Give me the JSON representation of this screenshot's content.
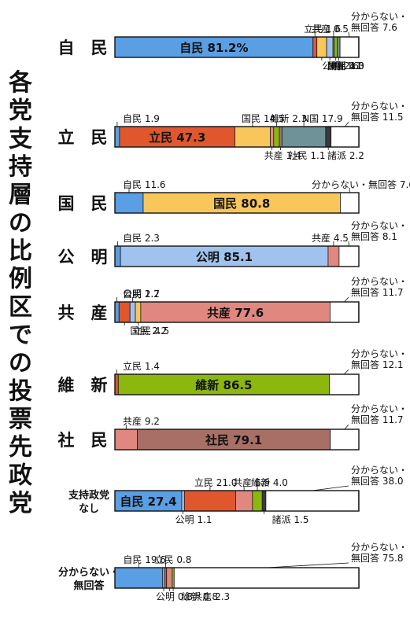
{
  "chart_data": {
    "type": "bar",
    "orientation": "horizontal-stacked-100",
    "title": "各党支持層の比例区での投票先政党",
    "xlim": [
      0,
      100
    ],
    "colors": {
      "自民": "#5a9ee3",
      "立民": "#e0572e",
      "国民": "#f8c65a",
      "公明": "#9fc3ee",
      "共産": "#e08880",
      "維新": "#8cb80d",
      "社民": "#a86f66",
      "N国": "#6e9297",
      "諸派": "#3a3a3a",
      "分からない・無回答": "#ffffff",
      "other": "#bdbdbd"
    },
    "rows": [
      {
        "name": "自　民",
        "segments": [
          {
            "party": "自民",
            "value": 81.2
          },
          {
            "party": "立民",
            "value": 1.6
          },
          {
            "party": "国民",
            "value": 4.0
          },
          {
            "party": "公明",
            "value": 2.6
          },
          {
            "party": "共産",
            "value": 0.5
          },
          {
            "party": "維新",
            "value": 1.3
          },
          {
            "party": "N国",
            "value": 1.1
          },
          {
            "party": "分からない・無回答",
            "value": 7.6
          }
        ],
        "labels": [
          {
            "party": "自民",
            "text": "自民 81.2%",
            "pos": "inside"
          },
          {
            "party": "共産",
            "text": "共産 0.5",
            "pos": "above"
          },
          {
            "party": "立民",
            "text": "立民 1.6",
            "pos": "above"
          },
          {
            "party": "分からない・無回答",
            "text": "分からない・",
            "text2": "無回答 7.6",
            "pos": "above"
          },
          {
            "party": "公明",
            "text": "公明 2.6",
            "pos": "below"
          },
          {
            "party": "国民",
            "text": "国民 4.0",
            "pos": "below"
          },
          {
            "party": "N国",
            "text": "N国 1.1",
            "pos": "below"
          },
          {
            "party": "維新",
            "text": "維新 1.3",
            "pos": "below"
          }
        ]
      },
      {
        "name": "立　民",
        "segments": [
          {
            "party": "自民",
            "value": 1.9
          },
          {
            "party": "立民",
            "value": 47.3
          },
          {
            "party": "国民",
            "value": 14.5
          },
          {
            "party": "共産",
            "value": 1.4
          },
          {
            "party": "維新",
            "value": 2.3
          },
          {
            "party": "社民",
            "value": 1.1
          },
          {
            "party": "N国",
            "value": 17.9
          },
          {
            "party": "諸派",
            "value": 2.2
          },
          {
            "party": "分からない・無回答",
            "value": 11.5
          }
        ],
        "labels": [
          {
            "party": "立民",
            "text": "立民 47.3",
            "pos": "inside"
          },
          {
            "party": "自民",
            "text": "自民 1.9",
            "pos": "above"
          },
          {
            "party": "国民",
            "text": "国民 14.5",
            "pos": "above"
          },
          {
            "party": "維新",
            "text": "維新 2.3",
            "pos": "above"
          },
          {
            "party": "N国",
            "text": "N国 17.9",
            "pos": "above"
          },
          {
            "party": "分からない・無回答",
            "text": "分からない・",
            "text2": "無回答 11.5",
            "pos": "above"
          },
          {
            "party": "共産",
            "text": "共産 1.4",
            "pos": "below"
          },
          {
            "party": "社民",
            "text": "社民 1.1",
            "pos": "below"
          },
          {
            "party": "諸派",
            "text": "諸派 2.2",
            "pos": "below"
          }
        ]
      },
      {
        "name": "国　民",
        "segments": [
          {
            "party": "自民",
            "value": 11.6
          },
          {
            "party": "国民",
            "value": 80.8
          },
          {
            "party": "分からない・無回答",
            "value": 7.6
          }
        ],
        "labels": [
          {
            "party": "国民",
            "text": "国民 80.8",
            "pos": "inside"
          },
          {
            "party": "自民",
            "text": "自民 11.6",
            "pos": "above"
          },
          {
            "party": "分からない・無回答",
            "text": "分からない・無回答 7.6",
            "pos": "above"
          }
        ]
      },
      {
        "name": "公　明",
        "segments": [
          {
            "party": "自民",
            "value": 2.3
          },
          {
            "party": "公明",
            "value": 85.1
          },
          {
            "party": "共産",
            "value": 4.5
          },
          {
            "party": "分からない・無回答",
            "value": 8.1
          }
        ],
        "labels": [
          {
            "party": "公明",
            "text": "公明 85.1",
            "pos": "inside"
          },
          {
            "party": "自民",
            "text": "自民 2.3",
            "pos": "above"
          },
          {
            "party": "共産",
            "text": "共産 4.5",
            "pos": "above"
          },
          {
            "party": "分からない・無回答",
            "text": "分からない・",
            "text2": "無回答 8.1",
            "pos": "above"
          }
        ]
      },
      {
        "name": "共　産",
        "segments": [
          {
            "party": "自民",
            "value": 1.7
          },
          {
            "party": "立民",
            "value": 4.5
          },
          {
            "party": "公明",
            "value": 2.2
          },
          {
            "party": "国民",
            "value": 2.2
          },
          {
            "party": "共産",
            "value": 77.6
          },
          {
            "party": "分からない・無回答",
            "value": 11.7
          }
        ],
        "labels": [
          {
            "party": "共産",
            "text": "共産 77.6",
            "pos": "inside"
          },
          {
            "party": "自民",
            "text": "自民 1.7",
            "pos": "above"
          },
          {
            "party": "公明",
            "text": "公明 2.2",
            "pos": "above"
          },
          {
            "party": "分からない・無回答",
            "text": "分からない・",
            "text2": "無回答 11.7",
            "pos": "above"
          },
          {
            "party": "国民",
            "text": "国民 2.2",
            "pos": "below"
          },
          {
            "party": "立民",
            "text": "立民 4.5",
            "pos": "below"
          }
        ]
      },
      {
        "name": "維　新",
        "segments": [
          {
            "party": "立民",
            "value": 1.4
          },
          {
            "party": "維新",
            "value": 86.5
          },
          {
            "party": "分からない・無回答",
            "value": 12.1
          }
        ],
        "labels": [
          {
            "party": "維新",
            "text": "維新 86.5",
            "pos": "inside"
          },
          {
            "party": "立民",
            "text": "立民 1.4",
            "pos": "above"
          },
          {
            "party": "分からない・無回答",
            "text": "分からない・",
            "text2": "無回答 12.1",
            "pos": "above"
          }
        ]
      },
      {
        "name": "社　民",
        "segments": [
          {
            "party": "共産",
            "value": 9.2
          },
          {
            "party": "社民",
            "value": 79.1
          },
          {
            "party": "分からない・無回答",
            "value": 11.7
          }
        ],
        "labels": [
          {
            "party": "社民",
            "text": "社民 79.1",
            "pos": "inside"
          },
          {
            "party": "共産",
            "text": "共産 9.2",
            "pos": "above"
          },
          {
            "party": "分からない・無回答",
            "text": "分からない・",
            "text2": "無回答 11.7",
            "pos": "above"
          }
        ]
      },
      {
        "name": "支持政党",
        "name2": "なし",
        "segments": [
          {
            "party": "自民",
            "value": 27.4
          },
          {
            "party": "公明",
            "value": 1.1
          },
          {
            "party": "立民",
            "value": 21.0
          },
          {
            "party": "共産",
            "value": 6.9
          },
          {
            "party": "維新",
            "value": 4.0
          },
          {
            "party": "諸派",
            "value": 1.5
          },
          {
            "party": "分からない・無回答",
            "value": 38.0
          }
        ],
        "labels": [
          {
            "party": "自民",
            "text": "自民 27.4",
            "pos": "inside"
          },
          {
            "party": "立民",
            "text": "立民 21.0",
            "pos": "above"
          },
          {
            "party": "共産",
            "text": "共産 6.9",
            "pos": "above"
          },
          {
            "party": "維新",
            "text": "維新 4.0",
            "pos": "above"
          },
          {
            "party": "分からない・無回答",
            "text": "分からない・",
            "text2": "無回答 38.0",
            "pos": "above"
          },
          {
            "party": "公明",
            "text": "公明 1.1",
            "pos": "below"
          },
          {
            "party": "諸派",
            "text": "諸派 1.5",
            "pos": "below"
          }
        ]
      },
      {
        "name": "分からない・",
        "name2": "無回答",
        "segments": [
          {
            "party": "自民",
            "value": 19.6
          },
          {
            "party": "公明",
            "value": 0.8
          },
          {
            "party": "立民",
            "value": 0.8
          },
          {
            "party": "共産",
            "value": 2.3
          },
          {
            "party": "維新",
            "value": 0.8
          },
          {
            "party": "分からない・無回答",
            "value": 75.8
          }
        ],
        "labels": [
          {
            "party": "自民",
            "text": "自民 19.6",
            "pos": "above"
          },
          {
            "party": "立民",
            "text": "立民 0.8",
            "pos": "above"
          },
          {
            "party": "分からない・無回答",
            "text": "分からない・",
            "text2": "無回答 75.8",
            "pos": "above"
          },
          {
            "party": "公明",
            "text": "公明 0.8",
            "pos": "below"
          },
          {
            "party": "維新",
            "text": "維新 0.8",
            "pos": "below"
          },
          {
            "party": "共産",
            "text": "共産 2.3",
            "pos": "below"
          }
        ]
      }
    ]
  }
}
